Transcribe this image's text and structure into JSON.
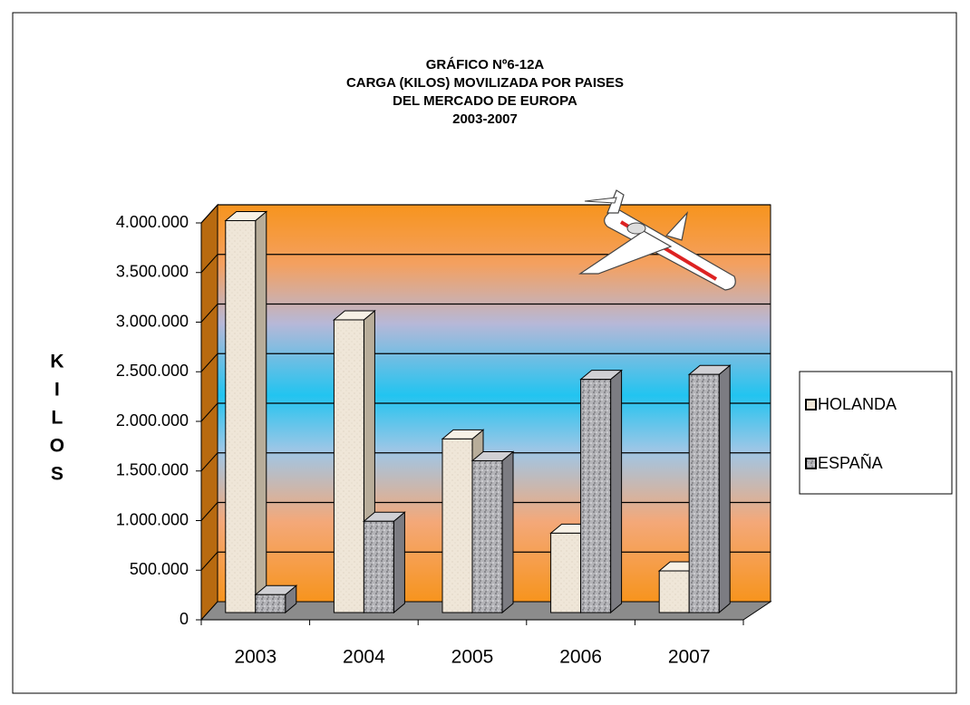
{
  "chart_data": {
    "type": "bar3d",
    "title": [
      "GRÁFICO Nº6-12A",
      "CARGA (KILOS) MOVILIZADA POR PAISES",
      "DEL MERCADO DE EUROPA",
      "2003-2007"
    ],
    "y_label": "KILOS",
    "categories": [
      "2003",
      "2004",
      "2005",
      "2006",
      "2007"
    ],
    "series": [
      {
        "name": "HOLANDA",
        "color": "#efe6d8",
        "values": [
          3950000,
          2950000,
          1750000,
          800000,
          420000
        ]
      },
      {
        "name": "ESPAÑA",
        "color": "#b4b4b8",
        "values": [
          180000,
          920000,
          1530000,
          2350000,
          2400000
        ]
      }
    ],
    "ylim": [
      0,
      4000000
    ],
    "yticks": [
      0,
      {
        "value": 500000,
        "label": "500.000"
      },
      {
        "value": 1000000,
        "label": "1.000.000"
      },
      {
        "value": 1500000,
        "label": "1.500.000"
      },
      {
        "value": 2000000,
        "label": "2.000.000"
      },
      {
        "value": 2500000,
        "label": "2.500.000"
      },
      {
        "value": 3000000,
        "label": "3.000.000"
      },
      {
        "value": 3500000,
        "label": "3.500.000"
      },
      {
        "value": 4000000,
        "label": "4.000.000"
      }
    ],
    "grid": true,
    "legend": "right"
  }
}
